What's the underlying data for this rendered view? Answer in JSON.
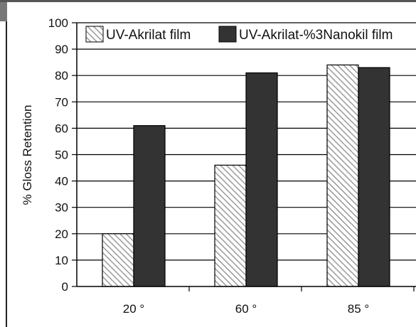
{
  "chart_data": {
    "type": "bar",
    "categories": [
      "20 °",
      "60 °",
      "85 °"
    ],
    "series": [
      {
        "name": "UV-Akrilat film",
        "values": [
          20,
          46,
          84
        ],
        "color": "#d9d9d9",
        "pattern": "diagonal-hatch"
      },
      {
        "name": "UV-Akrilat-%3Nanokil film",
        "values": [
          61,
          81,
          83
        ],
        "color": "#333333",
        "pattern": "solid"
      }
    ],
    "ylabel": "% Gloss Retention",
    "ylim": [
      0,
      100
    ],
    "yticks": [
      0,
      10,
      20,
      30,
      40,
      50,
      60,
      70,
      80,
      90,
      100
    ],
    "grid": true,
    "legend": "top-right"
  }
}
